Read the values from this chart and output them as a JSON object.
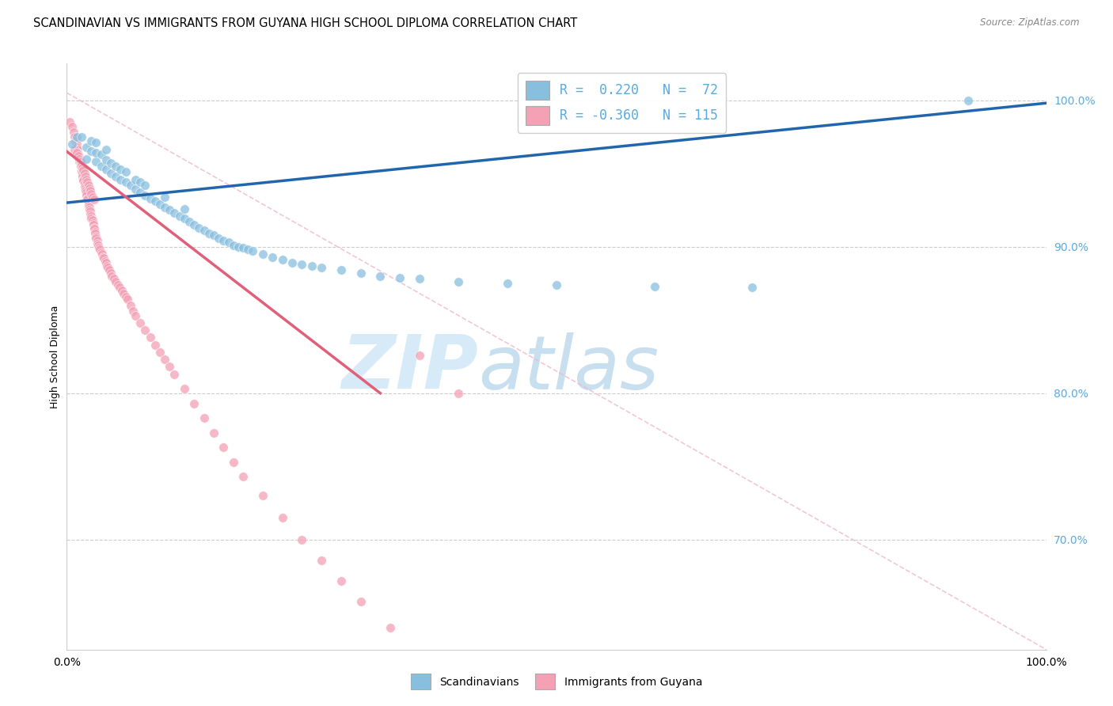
{
  "title": "SCANDINAVIAN VS IMMIGRANTS FROM GUYANA HIGH SCHOOL DIPLOMA CORRELATION CHART",
  "source": "Source: ZipAtlas.com",
  "ylabel": "High School Diploma",
  "xlim": [
    0,
    1
  ],
  "ylim": [
    0.625,
    1.025
  ],
  "yticks": [
    0.7,
    0.8,
    0.9,
    1.0
  ],
  "ytick_labels": [
    "70.0%",
    "80.0%",
    "90.0%",
    "100.0%"
  ],
  "legend_blue_label": "Scandinavians",
  "legend_pink_label": "Immigrants from Guyana",
  "blue_color": "#88bfdf",
  "pink_color": "#f4a0b5",
  "blue_line_color": "#2166ac",
  "pink_line_color": "#e0607a",
  "dashed_line_color": "#f0b8c8",
  "watermark_color": "#d6eaf8",
  "background_color": "#ffffff",
  "grid_color": "#cccccc",
  "tick_color": "#5aaae0",
  "blue_line_x": [
    0.0,
    1.0
  ],
  "blue_line_y": [
    0.93,
    0.998
  ],
  "pink_line_x": [
    0.0,
    0.32
  ],
  "pink_line_y": [
    0.965,
    0.8
  ],
  "diag_line_x": [
    0.0,
    1.0
  ],
  "diag_line_y": [
    1.005,
    0.625
  ],
  "blue_scatter_x": [
    0.005,
    0.01,
    0.015,
    0.02,
    0.02,
    0.025,
    0.025,
    0.03,
    0.03,
    0.03,
    0.035,
    0.035,
    0.04,
    0.04,
    0.04,
    0.045,
    0.045,
    0.05,
    0.05,
    0.055,
    0.055,
    0.06,
    0.06,
    0.065,
    0.07,
    0.07,
    0.075,
    0.075,
    0.08,
    0.08,
    0.085,
    0.09,
    0.095,
    0.1,
    0.1,
    0.105,
    0.11,
    0.115,
    0.12,
    0.12,
    0.125,
    0.13,
    0.135,
    0.14,
    0.145,
    0.15,
    0.155,
    0.16,
    0.165,
    0.17,
    0.175,
    0.18,
    0.185,
    0.19,
    0.2,
    0.21,
    0.22,
    0.23,
    0.24,
    0.25,
    0.26,
    0.28,
    0.3,
    0.32,
    0.34,
    0.36,
    0.4,
    0.45,
    0.5,
    0.6,
    0.7,
    0.92
  ],
  "blue_scatter_y": [
    0.97,
    0.975,
    0.975,
    0.96,
    0.968,
    0.965,
    0.972,
    0.958,
    0.964,
    0.971,
    0.955,
    0.963,
    0.953,
    0.959,
    0.966,
    0.95,
    0.957,
    0.948,
    0.955,
    0.946,
    0.953,
    0.944,
    0.951,
    0.942,
    0.939,
    0.946,
    0.937,
    0.944,
    0.935,
    0.942,
    0.933,
    0.931,
    0.929,
    0.927,
    0.934,
    0.925,
    0.923,
    0.921,
    0.919,
    0.926,
    0.917,
    0.915,
    0.913,
    0.911,
    0.909,
    0.908,
    0.906,
    0.904,
    0.903,
    0.901,
    0.9,
    0.899,
    0.898,
    0.897,
    0.895,
    0.893,
    0.891,
    0.889,
    0.888,
    0.887,
    0.886,
    0.884,
    0.882,
    0.88,
    0.879,
    0.878,
    0.876,
    0.875,
    0.874,
    0.873,
    0.872,
    1.0
  ],
  "pink_scatter_x": [
    0.003,
    0.005,
    0.007,
    0.008,
    0.009,
    0.01,
    0.01,
    0.011,
    0.011,
    0.012,
    0.012,
    0.013,
    0.013,
    0.014,
    0.014,
    0.015,
    0.015,
    0.016,
    0.016,
    0.017,
    0.017,
    0.018,
    0.018,
    0.019,
    0.019,
    0.02,
    0.02,
    0.021,
    0.021,
    0.022,
    0.022,
    0.023,
    0.023,
    0.024,
    0.024,
    0.025,
    0.025,
    0.026,
    0.027,
    0.027,
    0.028,
    0.028,
    0.029,
    0.029,
    0.03,
    0.03,
    0.031,
    0.031,
    0.032,
    0.033,
    0.034,
    0.035,
    0.036,
    0.037,
    0.038,
    0.039,
    0.04,
    0.041,
    0.042,
    0.043,
    0.045,
    0.046,
    0.048,
    0.05,
    0.052,
    0.054,
    0.056,
    0.058,
    0.06,
    0.062,
    0.065,
    0.068,
    0.07,
    0.075,
    0.08,
    0.085,
    0.09,
    0.095,
    0.1,
    0.105,
    0.11,
    0.12,
    0.13,
    0.14,
    0.15,
    0.16,
    0.17,
    0.18,
    0.2,
    0.22,
    0.24,
    0.26,
    0.28,
    0.3,
    0.33,
    0.36,
    0.4,
    0.008,
    0.01,
    0.012,
    0.013,
    0.014,
    0.015,
    0.016,
    0.017,
    0.018,
    0.019,
    0.02,
    0.021,
    0.022,
    0.023,
    0.024,
    0.025,
    0.026,
    0.028
  ],
  "pink_scatter_y": [
    0.985,
    0.982,
    0.978,
    0.975,
    0.972,
    0.97,
    0.968,
    0.966,
    0.964,
    0.963,
    0.961,
    0.96,
    0.958,
    0.956,
    0.955,
    0.953,
    0.951,
    0.95,
    0.948,
    0.946,
    0.945,
    0.943,
    0.941,
    0.94,
    0.938,
    0.937,
    0.935,
    0.933,
    0.932,
    0.93,
    0.928,
    0.927,
    0.925,
    0.924,
    0.922,
    0.921,
    0.919,
    0.918,
    0.916,
    0.915,
    0.913,
    0.912,
    0.91,
    0.909,
    0.907,
    0.906,
    0.904,
    0.902,
    0.901,
    0.899,
    0.898,
    0.896,
    0.895,
    0.893,
    0.892,
    0.89,
    0.889,
    0.887,
    0.886,
    0.884,
    0.882,
    0.88,
    0.878,
    0.876,
    0.874,
    0.872,
    0.87,
    0.868,
    0.866,
    0.864,
    0.86,
    0.856,
    0.853,
    0.848,
    0.843,
    0.838,
    0.833,
    0.828,
    0.823,
    0.818,
    0.813,
    0.803,
    0.793,
    0.783,
    0.773,
    0.763,
    0.753,
    0.743,
    0.73,
    0.715,
    0.7,
    0.686,
    0.672,
    0.658,
    0.64,
    0.826,
    0.8,
    0.966,
    0.964,
    0.962,
    0.96,
    0.958,
    0.956,
    0.954,
    0.952,
    0.95,
    0.948,
    0.946,
    0.944,
    0.942,
    0.94,
    0.938,
    0.936,
    0.934,
    0.932
  ]
}
